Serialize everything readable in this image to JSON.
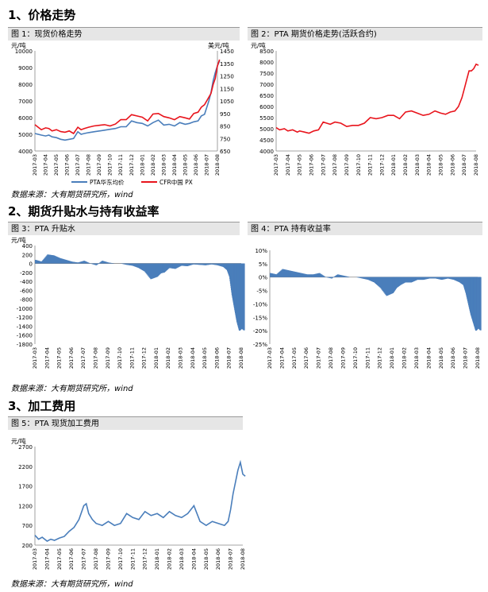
{
  "sections": {
    "s1": "1、价格走势",
    "s2": "2、期货升贴水与持有收益率",
    "s3": "3、加工费用"
  },
  "source_note": "数据来源：大有期货研究所，wind",
  "x_months": [
    "2017-03",
    "2017-04",
    "2017-05",
    "2017-06",
    "2017-07",
    "2017-08",
    "2017-09",
    "2017-10",
    "2017-11",
    "2017-12",
    "2018-01",
    "2018-02",
    "2018-03",
    "2018-04",
    "2018-05",
    "2018-06",
    "2018-07",
    "2018-08"
  ],
  "colors": {
    "blue": "#4a7ebb",
    "red": "#e8141c",
    "grid": "#d0d0d0"
  },
  "chart_data": [
    {
      "caption": "图 1：现货价格走势",
      "type": "line",
      "left_unit": "元/吨",
      "right_unit": "美元/吨",
      "ylim_left": [
        4000,
        10000
      ],
      "yticks_left": [
        4000,
        5000,
        6000,
        7000,
        8000,
        9000,
        10000
      ],
      "ylim_right": [
        650,
        1450
      ],
      "yticks_right": [
        650,
        750,
        850,
        950,
        1050,
        1150,
        1250,
        1350,
        1450
      ],
      "series": [
        {
          "name": "PTA华东均价",
          "axis": "left",
          "color": "#4a7ebb",
          "x": [
            0,
            0.3,
            0.6,
            1,
            1.3,
            1.6,
            2,
            2.4,
            2.8,
            3.2,
            3.6,
            4,
            4.3,
            4.6,
            5,
            5.5,
            6,
            6.5,
            7,
            7.5,
            8,
            8.5,
            9,
            9.5,
            10,
            10.5,
            11,
            11.5,
            12,
            12.5,
            13,
            13.5,
            14,
            14.4,
            14.8,
            15.2,
            15.5,
            15.8,
            16,
            16.2,
            16.4,
            16.6,
            16.8,
            17,
            17.2
          ],
          "values": [
            5050,
            5000,
            4950,
            4900,
            4950,
            4850,
            4800,
            4700,
            4650,
            4700,
            4750,
            5150,
            5000,
            5050,
            5100,
            5150,
            5200,
            5250,
            5300,
            5350,
            5450,
            5450,
            5800,
            5700,
            5650,
            5500,
            5700,
            5850,
            5550,
            5600,
            5500,
            5700,
            5600,
            5650,
            5750,
            5800,
            6100,
            6200,
            6600,
            7000,
            7500,
            8200,
            8700,
            9100,
            9400
          ]
        },
        {
          "name": "CFR中国 PX",
          "axis": "right",
          "color": "#e8141c",
          "x": [
            0,
            0.3,
            0.6,
            1,
            1.3,
            1.6,
            2,
            2.4,
            2.8,
            3.2,
            3.6,
            4,
            4.3,
            4.6,
            5,
            5.5,
            6,
            6.5,
            7,
            7.5,
            8,
            8.5,
            9,
            9.5,
            10,
            10.5,
            11,
            11.5,
            12,
            12.5,
            13,
            13.5,
            14,
            14.4,
            14.8,
            15.2,
            15.5,
            15.8,
            16,
            16.2,
            16.4,
            16.6,
            16.8,
            17,
            17.2
          ],
          "values": [
            860,
            840,
            820,
            835,
            830,
            810,
            820,
            805,
            800,
            810,
            790,
            840,
            820,
            830,
            840,
            850,
            855,
            860,
            850,
            865,
            900,
            900,
            940,
            930,
            920,
            890,
            945,
            950,
            925,
            915,
            900,
            925,
            915,
            905,
            950,
            960,
            1000,
            1020,
            1050,
            1080,
            1110,
            1180,
            1230,
            1330,
            1380
          ]
        }
      ]
    },
    {
      "caption": "图 2：PTA 期货价格走势(活跃合约)",
      "type": "line",
      "unit": "元/吨",
      "ylim": [
        4000,
        8500
      ],
      "yticks": [
        4000,
        4500,
        5000,
        5500,
        6000,
        6500,
        7000,
        7500,
        8000,
        8500
      ],
      "series": [
        {
          "name": "",
          "color": "#e8141c",
          "x": [
            0,
            0.3,
            0.7,
            1,
            1.4,
            1.8,
            2,
            2.4,
            2.8,
            3.2,
            3.6,
            4,
            4.3,
            4.6,
            5,
            5.5,
            6,
            6.5,
            7,
            7.5,
            8,
            8.5,
            9,
            9.5,
            10,
            10.5,
            11,
            11.5,
            12,
            12.5,
            13,
            13.5,
            14,
            14.4,
            14.8,
            15.2,
            15.5,
            15.8,
            16,
            16.2,
            16.4,
            16.6,
            16.8,
            17,
            17.2
          ],
          "values": [
            5050,
            4950,
            5000,
            4900,
            4950,
            4850,
            4900,
            4850,
            4800,
            4900,
            4950,
            5300,
            5250,
            5200,
            5300,
            5250,
            5100,
            5150,
            5150,
            5250,
            5500,
            5450,
            5500,
            5600,
            5600,
            5450,
            5750,
            5800,
            5700,
            5600,
            5650,
            5800,
            5700,
            5650,
            5750,
            5800,
            6000,
            6400,
            6800,
            7200,
            7600,
            7600,
            7700,
            7900,
            7850
          ]
        }
      ]
    },
    {
      "caption": "图 3：PTA 升贴水",
      "type": "bar",
      "unit": "元/吨",
      "ylim": [
        -1800,
        400
      ],
      "yticks": [
        400,
        200,
        0,
        -200,
        -400,
        -600,
        -800,
        -1000,
        -1200,
        -1400,
        -1600,
        -1800
      ],
      "series": [
        {
          "name": "",
          "color": "#4a7ebb",
          "x": [
            0,
            0.5,
            1,
            1.5,
            2,
            2.5,
            3,
            3.5,
            4,
            4.5,
            5,
            5.5,
            6,
            6.5,
            7,
            7.5,
            8,
            8.5,
            9,
            9.5,
            10,
            10.3,
            10.6,
            11,
            11.5,
            12,
            12.5,
            13,
            13.5,
            14,
            14.5,
            15,
            15.5,
            15.8,
            16,
            16.2,
            16.4,
            16.6,
            16.8,
            17,
            17.2
          ],
          "values": [
            80,
            40,
            200,
            180,
            120,
            80,
            40,
            20,
            60,
            0,
            -40,
            60,
            20,
            0,
            0,
            -30,
            -50,
            -100,
            -180,
            -350,
            -300,
            -220,
            -200,
            -100,
            -120,
            -50,
            -60,
            -20,
            -30,
            -40,
            -20,
            -40,
            -80,
            -150,
            -300,
            -700,
            -1000,
            -1300,
            -1500,
            -1450,
            -1500
          ]
        }
      ]
    },
    {
      "caption": "图 4：PTA 持有收益率",
      "type": "bar",
      "unit": "",
      "ylim": [
        -25,
        10
      ],
      "yticks": [
        10,
        5,
        0,
        -5,
        -10,
        -15,
        -20,
        -25
      ],
      "tick_suffix": "%",
      "series": [
        {
          "name": "",
          "color": "#4a7ebb",
          "x": [
            0,
            0.5,
            1,
            1.5,
            2,
            2.5,
            3,
            3.5,
            4,
            4.5,
            5,
            5.5,
            6,
            6.5,
            7,
            7.5,
            8,
            8.5,
            9,
            9.5,
            10,
            10.3,
            10.6,
            11,
            11.5,
            12,
            12.5,
            13,
            13.5,
            14,
            14.5,
            15,
            15.5,
            15.8,
            16,
            16.2,
            16.4,
            16.6,
            16.8,
            17,
            17.2
          ],
          "values": [
            1.5,
            1,
            3,
            2.5,
            2,
            1.5,
            1,
            1,
            1.5,
            0,
            -0.5,
            1,
            0.5,
            0,
            0,
            -0.5,
            -1,
            -2,
            -4,
            -7,
            -6,
            -4,
            -3,
            -2,
            -2,
            -1,
            -1,
            -0.5,
            -0.5,
            -1,
            -0.5,
            -1,
            -2,
            -3,
            -6,
            -10,
            -14,
            -17,
            -20,
            -19,
            -20
          ]
        }
      ]
    },
    {
      "caption": "图 5：PTA 现货加工费用",
      "type": "line",
      "unit": "元/吨",
      "ylim": [
        200,
        2700
      ],
      "yticks": [
        200,
        700,
        1200,
        1700,
        2200,
        2700
      ],
      "series": [
        {
          "name": "",
          "color": "#4a7ebb",
          "x": [
            0,
            0.3,
            0.6,
            1,
            1.3,
            1.6,
            2,
            2.4,
            2.8,
            3.2,
            3.6,
            4,
            4.2,
            4.4,
            4.7,
            5,
            5.5,
            6,
            6.5,
            7,
            7.5,
            8,
            8.5,
            9,
            9.5,
            10,
            10.5,
            11,
            11.5,
            12,
            12.5,
            13,
            13.5,
            14,
            14.5,
            15,
            15.5,
            15.8,
            16,
            16.2,
            16.4,
            16.6,
            16.8,
            17,
            17.2
          ],
          "values": [
            450,
            350,
            400,
            300,
            350,
            320,
            380,
            420,
            550,
            650,
            850,
            1200,
            1250,
            1000,
            850,
            750,
            700,
            800,
            700,
            750,
            1000,
            900,
            850,
            1050,
            950,
            1000,
            900,
            1050,
            950,
            900,
            1000,
            1200,
            800,
            700,
            800,
            750,
            700,
            800,
            1100,
            1500,
            1800,
            2100,
            2300,
            2000,
            1950
          ]
        }
      ]
    }
  ],
  "legend1": [
    "PTA华东均价",
    "CFR中国 PX"
  ]
}
